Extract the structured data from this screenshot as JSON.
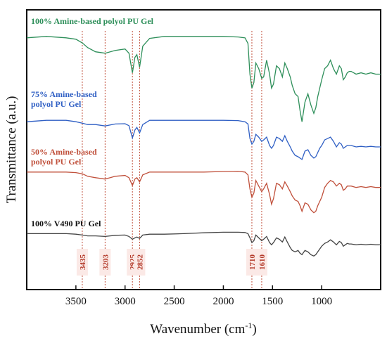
{
  "chart_data": {
    "type": "line",
    "title": "",
    "xlabel": "Wavenumber (cm",
    "xlabel_sup": "-1",
    "xlabel_tail": ")",
    "ylabel": "Transmittance (a.u.)",
    "xlim": [
      4000,
      400
    ],
    "x_reversed": true,
    "y_ticks_shown": false,
    "grid": false,
    "x_ticks": [
      3500,
      3000,
      2500,
      2000,
      1500,
      1000
    ],
    "x_tick_labels": [
      "3500",
      "3000",
      "2500",
      "2000",
      "1500",
      "1000"
    ],
    "x": [
      4000,
      3800,
      3600,
      3500,
      3435,
      3380,
      3300,
      3203,
      3100,
      3000,
      2960,
      2925,
      2900,
      2880,
      2852,
      2820,
      2750,
      2600,
      2400,
      2200,
      2000,
      1850,
      1780,
      1750,
      1730,
      1710,
      1690,
      1670,
      1640,
      1610,
      1590,
      1560,
      1530,
      1510,
      1490,
      1460,
      1430,
      1400,
      1375,
      1350,
      1320,
      1300,
      1270,
      1240,
      1220,
      1200,
      1170,
      1140,
      1110,
      1080,
      1060,
      1040,
      1020,
      1000,
      970,
      940,
      910,
      880,
      850,
      820,
      800,
      780,
      760,
      740,
      720,
      700,
      650,
      600,
      550,
      500,
      450,
      400
    ],
    "series": [
      {
        "name": "100% Amine-based polyol PU Gel",
        "color": "#2e8f5a",
        "values": [
          0.9,
          0.905,
          0.9,
          0.895,
          0.882,
          0.865,
          0.85,
          0.845,
          0.855,
          0.86,
          0.845,
          0.775,
          0.83,
          0.84,
          0.795,
          0.87,
          0.898,
          0.905,
          0.905,
          0.905,
          0.905,
          0.903,
          0.9,
          0.88,
          0.77,
          0.72,
          0.74,
          0.81,
          0.79,
          0.755,
          0.76,
          0.82,
          0.77,
          0.72,
          0.735,
          0.8,
          0.79,
          0.76,
          0.81,
          0.79,
          0.76,
          0.73,
          0.7,
          0.69,
          0.64,
          0.6,
          0.67,
          0.7,
          0.66,
          0.63,
          0.65,
          0.69,
          0.72,
          0.75,
          0.79,
          0.8,
          0.82,
          0.79,
          0.77,
          0.8,
          0.79,
          0.75,
          0.76,
          0.775,
          0.78,
          0.78,
          0.77,
          0.775,
          0.77,
          0.775,
          0.77,
          0.77
        ]
      },
      {
        "name": "75% Amine-based polyol PU Gel",
        "color": "#2f5fc4",
        "values": [
          0.6,
          0.605,
          0.605,
          0.6,
          0.595,
          0.59,
          0.59,
          0.585,
          0.592,
          0.593,
          0.586,
          0.542,
          0.57,
          0.58,
          0.56,
          0.59,
          0.605,
          0.605,
          0.605,
          0.605,
          0.605,
          0.604,
          0.6,
          0.592,
          0.54,
          0.52,
          0.53,
          0.555,
          0.545,
          0.53,
          0.535,
          0.545,
          0.515,
          0.505,
          0.515,
          0.545,
          0.54,
          0.53,
          0.55,
          0.53,
          0.51,
          0.495,
          0.48,
          0.475,
          0.47,
          0.465,
          0.495,
          0.5,
          0.48,
          0.47,
          0.475,
          0.49,
          0.505,
          0.515,
          0.535,
          0.54,
          0.545,
          0.53,
          0.51,
          0.525,
          0.52,
          0.505,
          0.51,
          0.515,
          0.515,
          0.515,
          0.51,
          0.512,
          0.51,
          0.512,
          0.51,
          0.51
        ]
      },
      {
        "name": "50% Amine-based polyol PU Gel",
        "color": "#c0503b",
        "values": [
          0.42,
          0.42,
          0.42,
          0.418,
          0.414,
          0.405,
          0.4,
          0.395,
          0.405,
          0.408,
          0.4,
          0.372,
          0.395,
          0.4,
          0.385,
          0.41,
          0.42,
          0.42,
          0.42,
          0.42,
          0.422,
          0.423,
          0.42,
          0.41,
          0.36,
          0.33,
          0.345,
          0.39,
          0.37,
          0.35,
          0.36,
          0.38,
          0.34,
          0.305,
          0.325,
          0.38,
          0.375,
          0.36,
          0.385,
          0.37,
          0.35,
          0.335,
          0.32,
          0.315,
          0.3,
          0.28,
          0.31,
          0.305,
          0.285,
          0.275,
          0.28,
          0.3,
          0.315,
          0.33,
          0.365,
          0.38,
          0.39,
          0.385,
          0.37,
          0.38,
          0.375,
          0.355,
          0.36,
          0.37,
          0.37,
          0.37,
          0.365,
          0.368,
          0.365,
          0.368,
          0.365,
          0.365
        ]
      },
      {
        "name": "100% V490 PU Gel",
        "color": "#444444",
        "values": [
          0.2,
          0.2,
          0.2,
          0.198,
          0.195,
          0.192,
          0.192,
          0.19,
          0.194,
          0.195,
          0.19,
          0.18,
          0.185,
          0.188,
          0.183,
          0.195,
          0.198,
          0.198,
          0.2,
          0.203,
          0.205,
          0.205,
          0.204,
          0.2,
          0.185,
          0.168,
          0.175,
          0.195,
          0.185,
          0.175,
          0.18,
          0.19,
          0.168,
          0.16,
          0.168,
          0.185,
          0.18,
          0.17,
          0.188,
          0.17,
          0.15,
          0.14,
          0.135,
          0.14,
          0.13,
          0.125,
          0.14,
          0.135,
          0.125,
          0.12,
          0.125,
          0.135,
          0.145,
          0.155,
          0.165,
          0.17,
          0.178,
          0.17,
          0.16,
          0.172,
          0.168,
          0.155,
          0.16,
          0.165,
          0.163,
          0.163,
          0.16,
          0.162,
          0.16,
          0.162,
          0.16,
          0.16
        ]
      }
    ],
    "series_labels": [
      {
        "line1": "100% Amine-based polyol PU Gel",
        "line2": "",
        "color": "#2e8f5a"
      },
      {
        "line1": "75% Amine-based",
        "line2": "polyol PU Gel",
        "color": "#2f5fc4"
      },
      {
        "line1": "50% Amine-based",
        "line2": "polyol PU Gel",
        "color": "#c0503b"
      },
      {
        "line1": "100% V490 PU Gel",
        "line2": "",
        "color": "#111111"
      }
    ],
    "reference_lines": [
      {
        "x": 3435,
        "label": "3435"
      },
      {
        "x": 3203,
        "label": "3203"
      },
      {
        "x": 2925,
        "label": "2925"
      },
      {
        "x": 2852,
        "label": "2852"
      },
      {
        "x": 1710,
        "label": "1710"
      },
      {
        "x": 1610,
        "label": "1610"
      }
    ],
    "reference_color": "#c0503b"
  }
}
